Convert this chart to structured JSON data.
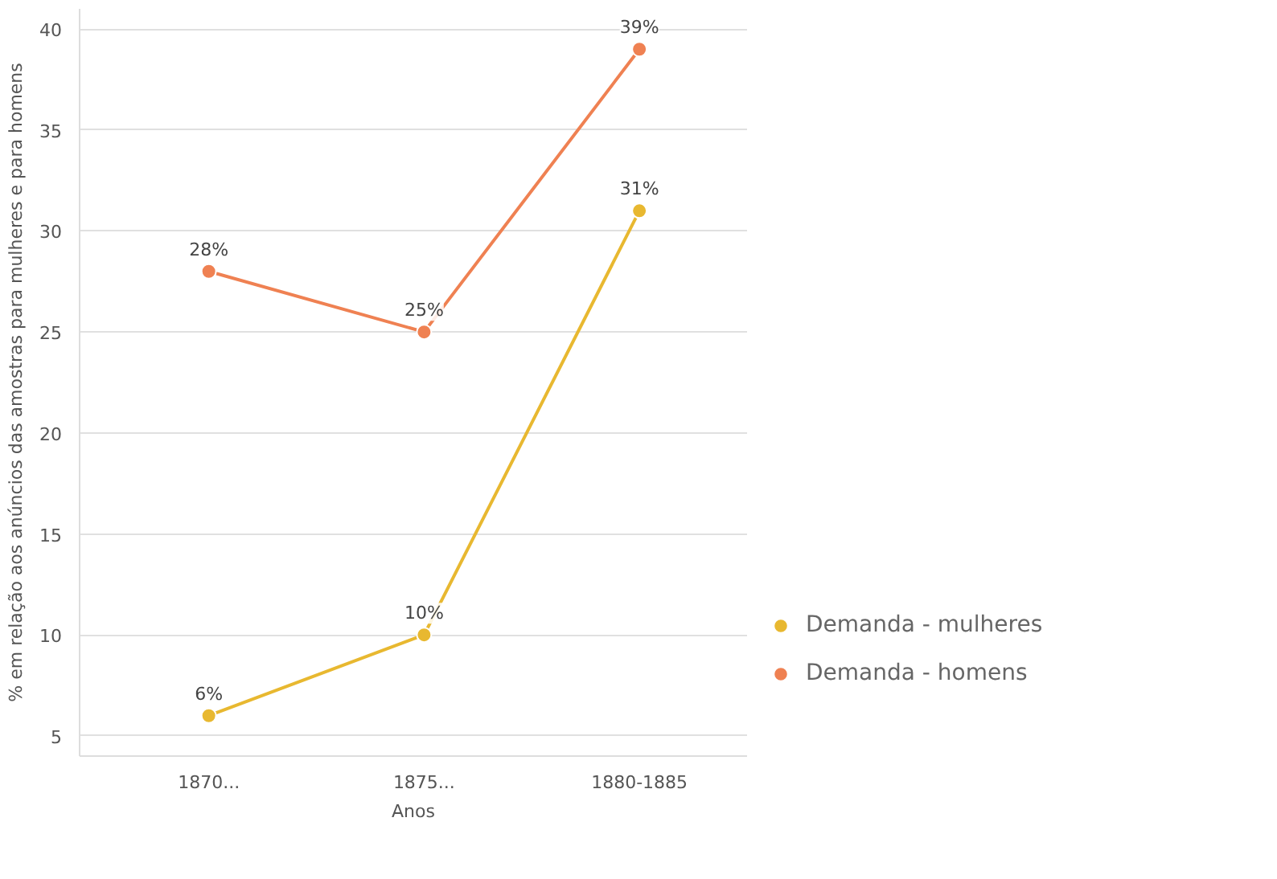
{
  "chart_data": {
    "type": "line",
    "xlabel": "Anos",
    "ylabel": "% em relação aos anúncios das amostras para mulheres e para homens",
    "categories": [
      "1870...",
      "1875...",
      "1880-1885"
    ],
    "series": [
      {
        "name": "Demanda - mulheres",
        "color": "#e8b830",
        "values": [
          6,
          10,
          31
        ],
        "value_labels": [
          "6%",
          "10%",
          "31%"
        ]
      },
      {
        "name": "Demanda - homens",
        "color": "#ef8152",
        "values": [
          28,
          25,
          39
        ],
        "value_labels": [
          "28%",
          "25%",
          "39%"
        ]
      }
    ],
    "ylim": [
      4,
      41
    ],
    "yticks": [
      5,
      10,
      15,
      20,
      25,
      30,
      35,
      40
    ],
    "grid": "y",
    "legend": "bottom right",
    "marker": "circle",
    "line_style": "solid"
  }
}
